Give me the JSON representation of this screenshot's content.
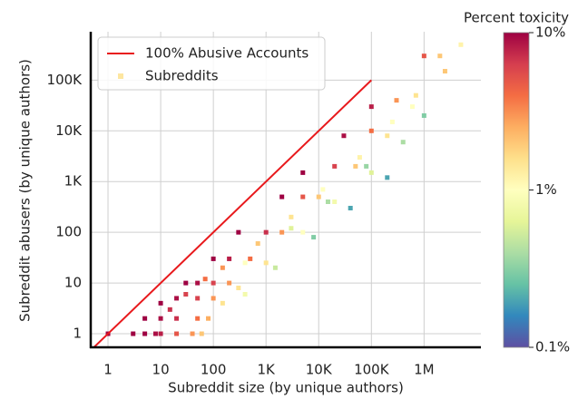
{
  "chart_data": {
    "type": "scatter",
    "xlabel": "Subreddit size (by unique authors)",
    "ylabel": "Subreddit abusers (by unique authors)",
    "xscale": "log",
    "yscale": "log",
    "grid": true,
    "legend": "upper left",
    "xlim": [
      0.47,
      12000000
    ],
    "ylim": [
      0.54,
      900000
    ],
    "xticks": [
      1,
      10,
      100,
      {
        "value": 1000,
        "label": "1K"
      },
      {
        "value": 10000,
        "label": "10K"
      },
      {
        "value": 100000,
        "label": "100K"
      },
      {
        "value": 1000000,
        "label": "1M"
      }
    ],
    "yticks": [
      1,
      10,
      100,
      {
        "value": 1000,
        "label": "1K"
      },
      {
        "value": 10000,
        "label": "10K"
      },
      {
        "value": 100000,
        "label": "100K"
      }
    ],
    "reference_line": {
      "name": "100% Abusive Accounts",
      "color": "#e8191c",
      "x": [
        0.54,
        100000
      ],
      "y": [
        0.54,
        100000
      ]
    },
    "series": [
      {
        "name": "Subreddits",
        "color": "#fde6a0",
        "x": [
          1,
          3,
          5,
          8,
          10,
          20,
          40,
          60,
          5,
          10,
          20,
          50,
          80,
          10,
          20,
          50,
          100,
          150,
          30,
          50,
          100,
          200,
          300,
          400,
          100,
          200,
          500,
          1000,
          1500,
          300,
          1000,
          2000,
          5000,
          8000,
          2000,
          5000,
          10000,
          20000,
          40000,
          5000,
          20000,
          50000,
          100000,
          200000,
          30000,
          100000,
          200000,
          400000,
          100000,
          300000,
          600000,
          1000000,
          1000000,
          2000000,
          5000000,
          15,
          30,
          70,
          150,
          700,
          3000,
          12000,
          60000,
          250000,
          700000,
          2500000,
          400,
          3000,
          15000,
          80000
        ],
        "y": [
          1,
          1,
          1,
          1,
          1,
          1,
          1,
          1,
          2,
          2,
          2,
          2,
          2,
          4,
          5,
          5,
          5,
          4,
          10,
          10,
          10,
          10,
          8,
          6,
          30,
          30,
          30,
          25,
          20,
          100,
          100,
          100,
          100,
          80,
          500,
          500,
          500,
          400,
          300,
          1500,
          2000,
          2000,
          1500,
          1200,
          8000,
          10000,
          8000,
          6000,
          30000,
          40000,
          30000,
          20000,
          300000,
          300000,
          500000,
          3,
          6,
          12,
          20,
          60,
          200,
          700,
          3000,
          15000,
          50000,
          150000,
          25,
          120,
          400,
          2000
        ],
        "toxicity": [
          10,
          10,
          10,
          9,
          8,
          5,
          3,
          2,
          10,
          9,
          7,
          4,
          2.5,
          10,
          9,
          6,
          3,
          1.5,
          10,
          9,
          6,
          3,
          1.5,
          0.8,
          10,
          8,
          4,
          1.5,
          0.5,
          10,
          7,
          3,
          1,
          0.3,
          10,
          5,
          2,
          0.8,
          0.2,
          10,
          6,
          2,
          0.6,
          0.2,
          9,
          4,
          1.5,
          0.4,
          8,
          3,
          1,
          0.3,
          5,
          2,
          1.2,
          7,
          6,
          4,
          3,
          2,
          1.5,
          1,
          1.2,
          1,
          1.5,
          2,
          1,
          0.6,
          0.4,
          0.35
        ]
      }
    ],
    "colorbar": {
      "title": "Percent toxicity",
      "lim": [
        0.1,
        10
      ],
      "ticks": [
        {
          "value": 0.1,
          "label": "0.1%"
        },
        {
          "value": 1,
          "label": "1%"
        },
        {
          "value": 10,
          "label": "10%"
        }
      ],
      "colors": [
        "#5e4fa2",
        "#3288bd",
        "#66c2a5",
        "#abdda4",
        "#e6f598",
        "#ffffbf",
        "#fee08b",
        "#fdae61",
        "#f46d43",
        "#d53e4f",
        "#9e0142"
      ]
    }
  }
}
